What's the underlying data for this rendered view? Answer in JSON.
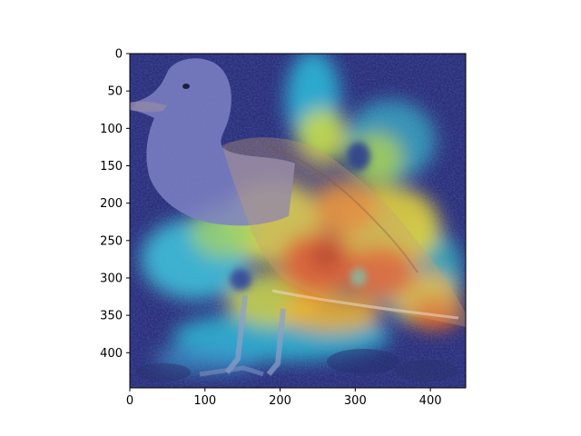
{
  "image": {
    "subject": "seagull",
    "overlay": "heatmap",
    "colormap": "jet"
  },
  "axes": {
    "x_range": [
      0,
      447
    ],
    "y_range": [
      0,
      447
    ],
    "y_inverted": true,
    "x_ticks": [
      "0",
      "100",
      "200",
      "300",
      "400"
    ],
    "y_ticks": [
      "0",
      "50",
      "100",
      "150",
      "200",
      "250",
      "300",
      "350",
      "400"
    ],
    "x_tick_values": [
      0,
      100,
      200,
      300,
      400
    ],
    "y_tick_values": [
      0,
      50,
      100,
      150,
      200,
      250,
      300,
      350,
      400
    ]
  }
}
